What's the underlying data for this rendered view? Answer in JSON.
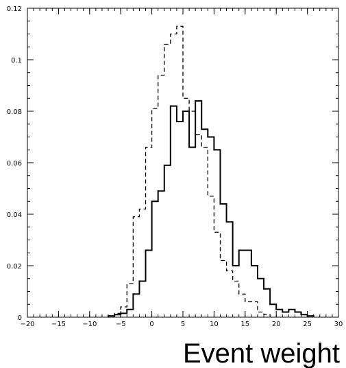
{
  "chart_data": {
    "type": "area",
    "title": "",
    "xlabel": "Event weight",
    "ylabel": "",
    "xlim": [
      -20,
      30
    ],
    "ylim": [
      0,
      0.12
    ],
    "grid": false,
    "legend": "none",
    "bin_width": 1,
    "x_ticks": [
      -20,
      -15,
      -10,
      -5,
      0,
      5,
      10,
      15,
      20,
      25,
      30
    ],
    "x_tick_labels": [
      "-20",
      "-15",
      "-10",
      "-5",
      "0",
      "5",
      "10",
      "15",
      "20",
      "25",
      "30"
    ],
    "y_ticks": [
      0,
      0.02,
      0.04,
      0.06,
      0.08,
      0.1,
      0.12
    ],
    "y_tick_labels": [
      "0",
      "0.02",
      "0.04",
      "0.06",
      "0.08",
      "0.1",
      "0.12"
    ],
    "series": [
      {
        "style": "solid",
        "color": "#000000",
        "bins": [
          {
            "x0": -7,
            "x1": -6,
            "y": 0.0005
          },
          {
            "x0": -6,
            "x1": -5,
            "y": 0.001
          },
          {
            "x0": -5,
            "x1": -4,
            "y": 0.0015
          },
          {
            "x0": -4,
            "x1": -3,
            "y": 0.003
          },
          {
            "x0": -3,
            "x1": -2,
            "y": 0.009
          },
          {
            "x0": -2,
            "x1": -1,
            "y": 0.014
          },
          {
            "x0": -1,
            "x1": 0,
            "y": 0.026
          },
          {
            "x0": 0,
            "x1": 1,
            "y": 0.045
          },
          {
            "x0": 1,
            "x1": 2,
            "y": 0.049
          },
          {
            "x0": 2,
            "x1": 3,
            "y": 0.059
          },
          {
            "x0": 3,
            "x1": 4,
            "y": 0.082
          },
          {
            "x0": 4,
            "x1": 5,
            "y": 0.076
          },
          {
            "x0": 5,
            "x1": 6,
            "y": 0.08
          },
          {
            "x0": 6,
            "x1": 7,
            "y": 0.066
          },
          {
            "x0": 7,
            "x1": 8,
            "y": 0.084
          },
          {
            "x0": 8,
            "x1": 9,
            "y": 0.073
          },
          {
            "x0": 9,
            "x1": 10,
            "y": 0.07
          },
          {
            "x0": 10,
            "x1": 11,
            "y": 0.065
          },
          {
            "x0": 11,
            "x1": 12,
            "y": 0.044
          },
          {
            "x0": 12,
            "x1": 13,
            "y": 0.037
          },
          {
            "x0": 13,
            "x1": 14,
            "y": 0.02
          },
          {
            "x0": 14,
            "x1": 15,
            "y": 0.026
          },
          {
            "x0": 15,
            "x1": 16,
            "y": 0.026
          },
          {
            "x0": 16,
            "x1": 17,
            "y": 0.02
          },
          {
            "x0": 17,
            "x1": 18,
            "y": 0.015
          },
          {
            "x0": 18,
            "x1": 19,
            "y": 0.011
          },
          {
            "x0": 19,
            "x1": 20,
            "y": 0.005
          },
          {
            "x0": 20,
            "x1": 21,
            "y": 0.003
          },
          {
            "x0": 21,
            "x1": 22,
            "y": 0.002
          },
          {
            "x0": 22,
            "x1": 23,
            "y": 0.003
          },
          {
            "x0": 23,
            "x1": 24,
            "y": 0.002
          },
          {
            "x0": 24,
            "x1": 25,
            "y": 0.001
          },
          {
            "x0": 25,
            "x1": 26,
            "y": 0.0005
          }
        ]
      },
      {
        "style": "dashed",
        "color": "#000000",
        "bins": [
          {
            "x0": -6,
            "x1": -5,
            "y": 0.0015
          },
          {
            "x0": -5,
            "x1": -4,
            "y": 0.004
          },
          {
            "x0": -4,
            "x1": -3,
            "y": 0.013
          },
          {
            "x0": -3,
            "x1": -2,
            "y": 0.039
          },
          {
            "x0": -2,
            "x1": -1,
            "y": 0.042
          },
          {
            "x0": -1,
            "x1": 0,
            "y": 0.066
          },
          {
            "x0": 0,
            "x1": 1,
            "y": 0.081
          },
          {
            "x0": 1,
            "x1": 2,
            "y": 0.094
          },
          {
            "x0": 2,
            "x1": 3,
            "y": 0.106
          },
          {
            "x0": 3,
            "x1": 4,
            "y": 0.11
          },
          {
            "x0": 4,
            "x1": 5,
            "y": 0.113
          },
          {
            "x0": 5,
            "x1": 6,
            "y": 0.085
          },
          {
            "x0": 6,
            "x1": 7,
            "y": 0.08
          },
          {
            "x0": 7,
            "x1": 8,
            "y": 0.071
          },
          {
            "x0": 8,
            "x1": 9,
            "y": 0.066
          },
          {
            "x0": 9,
            "x1": 10,
            "y": 0.047
          },
          {
            "x0": 10,
            "x1": 11,
            "y": 0.033
          },
          {
            "x0": 11,
            "x1": 12,
            "y": 0.022
          },
          {
            "x0": 12,
            "x1": 13,
            "y": 0.018
          },
          {
            "x0": 13,
            "x1": 14,
            "y": 0.014
          },
          {
            "x0": 14,
            "x1": 15,
            "y": 0.009
          },
          {
            "x0": 15,
            "x1": 16,
            "y": 0.006
          },
          {
            "x0": 16,
            "x1": 17,
            "y": 0.006
          },
          {
            "x0": 17,
            "x1": 18,
            "y": 0.002
          },
          {
            "x0": 18,
            "x1": 19,
            "y": 0.001
          }
        ]
      }
    ]
  }
}
